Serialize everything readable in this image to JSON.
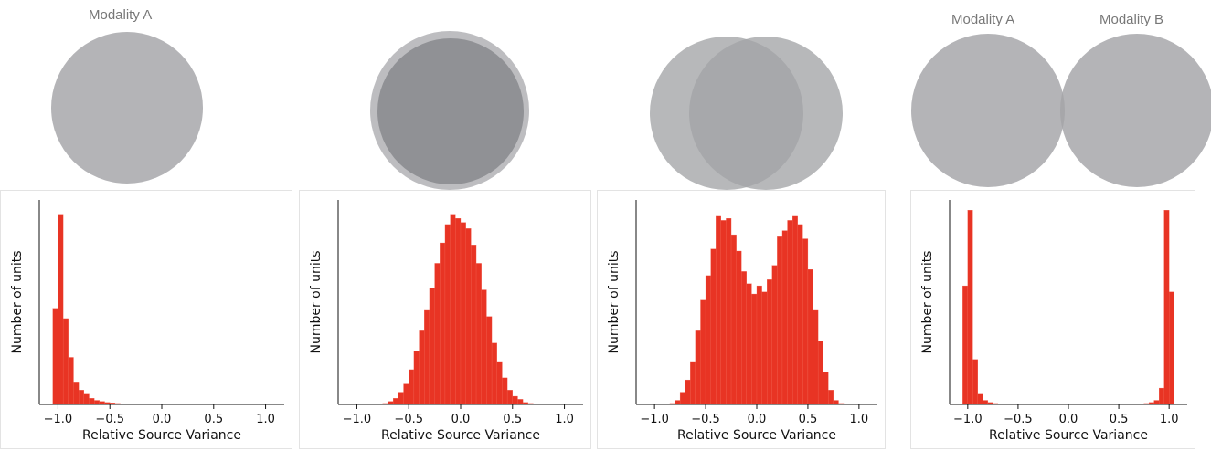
{
  "venn_labels": {
    "left_label": "Modality A",
    "right_pair_left_label": "Modality A",
    "right_pair_right_label": "Modality B"
  },
  "colors": {
    "circle": "#a3a4a7",
    "bar": "#e83424",
    "axis": "#111111"
  },
  "chart_data": [
    {
      "type": "bar",
      "xlabel": "Relative Source Variance",
      "ylabel": "Number of units",
      "xticks": [
        -1.0,
        -0.5,
        0.0,
        0.5,
        1.0
      ],
      "xtick_labels": [
        "−1.0",
        "−0.5",
        "0.0",
        "0.5",
        "1.0"
      ],
      "xlim": [
        -1.18,
        1.18
      ],
      "ylim": [
        0,
        1.0
      ],
      "yticks_shown": false,
      "bin_width": 0.05,
      "bin_starts": [
        -1.05,
        -1.0,
        -0.95,
        -0.9,
        -0.85,
        -0.8,
        -0.75,
        -0.7,
        -0.65,
        -0.6,
        -0.55,
        -0.5,
        -0.45,
        -0.4
      ],
      "values": [
        0.47,
        0.93,
        0.42,
        0.23,
        0.11,
        0.07,
        0.05,
        0.03,
        0.02,
        0.015,
        0.01,
        0.008,
        0.005,
        0.003
      ]
    },
    {
      "type": "bar",
      "xlabel": "Relative Source Variance",
      "ylabel": "Number of units",
      "xticks": [
        -1.0,
        -0.5,
        0.0,
        0.5,
        1.0
      ],
      "xtick_labels": [
        "−1.0",
        "−0.5",
        "0.0",
        "0.5",
        "1.0"
      ],
      "xlim": [
        -1.18,
        1.18
      ],
      "ylim": [
        0,
        1.0
      ],
      "yticks_shown": false,
      "bin_width": 0.05,
      "bin_starts": [
        -0.75,
        -0.7,
        -0.65,
        -0.6,
        -0.55,
        -0.5,
        -0.45,
        -0.4,
        -0.35,
        -0.3,
        -0.25,
        -0.2,
        -0.15,
        -0.1,
        -0.05,
        0.0,
        0.05,
        0.1,
        0.15,
        0.2,
        0.25,
        0.3,
        0.35,
        0.4,
        0.45,
        0.5,
        0.55,
        0.6,
        0.65
      ],
      "values": [
        0.005,
        0.015,
        0.03,
        0.06,
        0.1,
        0.17,
        0.26,
        0.36,
        0.46,
        0.57,
        0.69,
        0.79,
        0.88,
        0.93,
        0.91,
        0.89,
        0.86,
        0.78,
        0.69,
        0.56,
        0.43,
        0.3,
        0.21,
        0.13,
        0.07,
        0.04,
        0.025,
        0.01,
        0.005
      ]
    },
    {
      "type": "bar",
      "xlabel": "Relative Source Variance",
      "ylabel": "Number of units",
      "xticks": [
        -1.0,
        -0.5,
        0.0,
        0.5,
        1.0
      ],
      "xtick_labels": [
        "−1.0",
        "−0.5",
        "0.0",
        "0.5",
        "1.0"
      ],
      "xlim": [
        -1.18,
        1.18
      ],
      "ylim": [
        0,
        1.0
      ],
      "yticks_shown": false,
      "bin_width": 0.05,
      "bin_starts": [
        -0.85,
        -0.8,
        -0.75,
        -0.7,
        -0.65,
        -0.6,
        -0.55,
        -0.5,
        -0.45,
        -0.4,
        -0.35,
        -0.3,
        -0.25,
        -0.2,
        -0.15,
        -0.1,
        -0.05,
        0.0,
        0.05,
        0.1,
        0.15,
        0.2,
        0.25,
        0.3,
        0.35,
        0.4,
        0.45,
        0.5,
        0.55,
        0.6,
        0.65,
        0.7,
        0.75,
        0.8
      ],
      "values": [
        0.005,
        0.02,
        0.06,
        0.12,
        0.21,
        0.36,
        0.51,
        0.63,
        0.76,
        0.92,
        0.9,
        0.91,
        0.83,
        0.75,
        0.65,
        0.59,
        0.54,
        0.58,
        0.55,
        0.61,
        0.68,
        0.82,
        0.85,
        0.9,
        0.92,
        0.88,
        0.81,
        0.66,
        0.46,
        0.31,
        0.16,
        0.07,
        0.02,
        0.005
      ]
    },
    {
      "type": "bar",
      "xlabel": "Relative Source Variance",
      "ylabel": "Number of units",
      "xticks": [
        -1.0,
        -0.5,
        0.0,
        0.5,
        1.0
      ],
      "xtick_labels": [
        "−1.0",
        "−0.5",
        "0.0",
        "0.5",
        "1.0"
      ],
      "xlim": [
        -1.18,
        1.18
      ],
      "ylim": [
        0,
        1.0
      ],
      "yticks_shown": false,
      "bin_width": 0.05,
      "bin_starts": [
        -1.05,
        -1.0,
        -0.95,
        -0.9,
        -0.85,
        -0.8,
        -0.75,
        0.75,
        0.8,
        0.85,
        0.9,
        0.95,
        1.0
      ],
      "values": [
        0.58,
        0.95,
        0.22,
        0.05,
        0.02,
        0.01,
        0.005,
        0.005,
        0.01,
        0.02,
        0.08,
        0.95,
        0.55
      ]
    }
  ]
}
